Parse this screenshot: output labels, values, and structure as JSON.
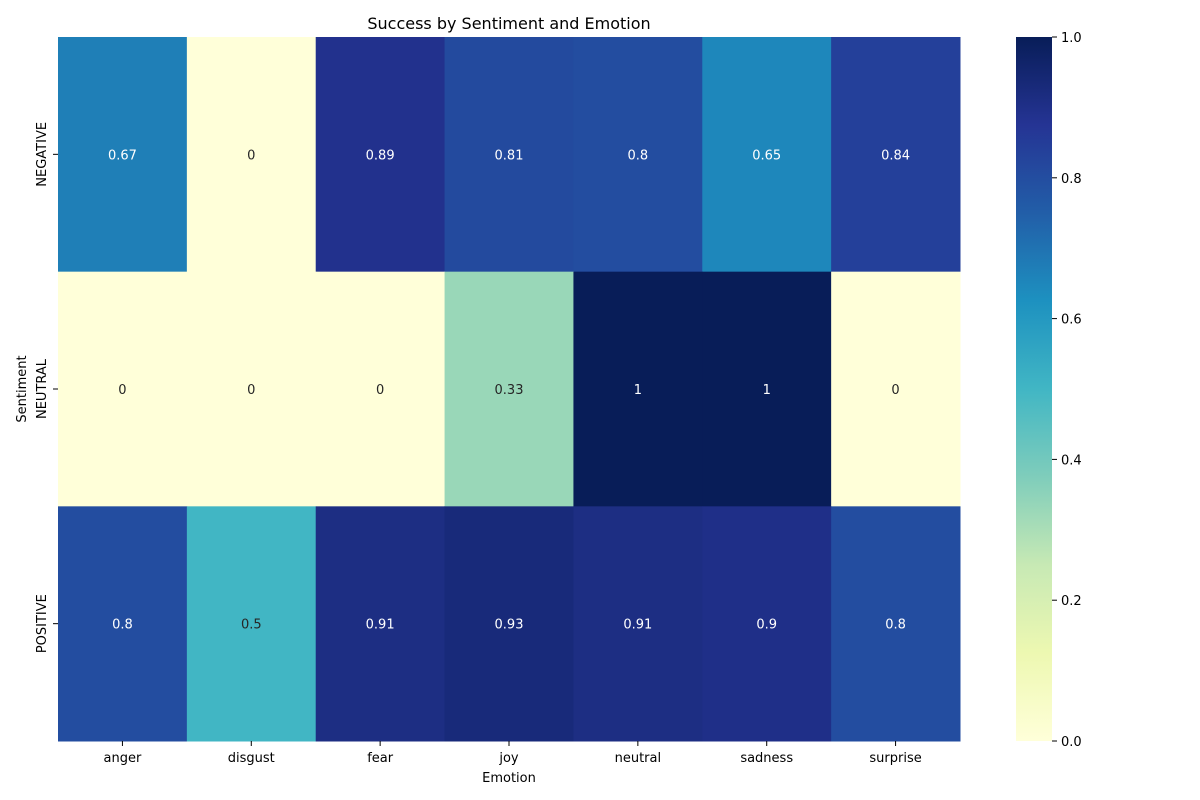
{
  "chart_data": {
    "type": "heatmap",
    "title": "Success by Sentiment and Emotion",
    "xlabel": "Emotion",
    "ylabel": "Sentiment",
    "x_categories": [
      "anger",
      "disgust",
      "fear",
      "joy",
      "neutral",
      "sadness",
      "surprise"
    ],
    "y_categories": [
      "NEGATIVE",
      "NEUTRAL",
      "POSITIVE"
    ],
    "values": [
      [
        0.67,
        0,
        0.89,
        0.81,
        0.8,
        0.65,
        0.84
      ],
      [
        0,
        0,
        0,
        0.33,
        1,
        1,
        0
      ],
      [
        0.8,
        0.5,
        0.91,
        0.93,
        0.91,
        0.9,
        0.8
      ]
    ],
    "vmin": 0.0,
    "vmax": 1.0,
    "colormap": "YlGnBu",
    "colorbar_ticks": [
      "0.0",
      "0.2",
      "0.4",
      "0.6",
      "0.8",
      "1.0"
    ]
  }
}
